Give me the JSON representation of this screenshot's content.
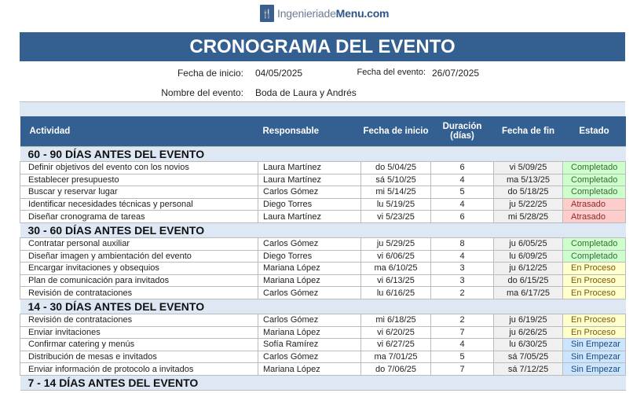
{
  "logo": {
    "text_light": "Ingenieriade",
    "text_bold": "Menu.com"
  },
  "title": "CRONOGRAMA DEL EVENTO",
  "meta": {
    "start_label": "Fecha de inicio:",
    "start_value": "04/05/2025",
    "event_date_label": "Fecha del evento:",
    "event_date_value": "26/07/2025",
    "name_label": "Nombre del evento:",
    "name_value": "Boda de Laura y Andrés"
  },
  "columns": [
    "Actividad",
    "Responsable",
    "Fecha de inicio",
    "Duración (días)",
    "Fecha de fin",
    "Estado"
  ],
  "status_colors": {
    "Completado": {
      "bg": "#ccffcc",
      "fg": "#3a6b3a"
    },
    "Atrasado": {
      "bg": "#ffcccc",
      "fg": "#8a2b2b"
    },
    "En Proceso": {
      "bg": "#ffffcc",
      "fg": "#7a5c10"
    },
    "Sin Empezar": {
      "bg": "#cce5ff",
      "fg": "#1f4a78"
    }
  },
  "sections": [
    {
      "title": "60 - 90 DÍAS ANTES DEL EVENTO",
      "rows": [
        [
          "Definir objetivos del evento con los novios",
          "Laura Martínez",
          "do 5/04/25",
          "6",
          "vi 5/09/25",
          "Completado"
        ],
        [
          "Establecer presupuesto",
          "Laura Martínez",
          "sá 5/10/25",
          "4",
          "ma 5/13/25",
          "Completado"
        ],
        [
          "Buscar y reservar lugar",
          "Carlos Gómez",
          "mi 5/14/25",
          "5",
          "do 5/18/25",
          "Completado"
        ],
        [
          "Identificar necesidades técnicas y personal",
          "Diego Torres",
          "lu 5/19/25",
          "4",
          "ju 5/22/25",
          "Atrasado"
        ],
        [
          "Diseñar cronograma de tareas",
          "Laura Martínez",
          "vi 5/23/25",
          "6",
          "mi 5/28/25",
          "Atrasado"
        ]
      ]
    },
    {
      "title": "30 - 60 DÍAS ANTES DEL EVENTO",
      "rows": [
        [
          "Contratar personal auxiliar",
          "Carlos Gómez",
          "ju 5/29/25",
          "8",
          "ju 6/05/25",
          "Completado"
        ],
        [
          "Diseñar imagen y ambientación del evento",
          "Diego Torres",
          "vi 6/06/25",
          "4",
          "lu 6/09/25",
          "Completado"
        ],
        [
          "Encargar invitaciones y obsequios",
          "Mariana López",
          "ma 6/10/25",
          "3",
          "ju 6/12/25",
          "En Proceso"
        ],
        [
          "Plan de comunicación para invitados",
          "Mariana López",
          "vi 6/13/25",
          "3",
          "do 6/15/25",
          "En Proceso"
        ],
        [
          "Revisión de contrataciones",
          "Carlos Gómez",
          "lu 6/16/25",
          "2",
          "ma 6/17/25",
          "En Proceso"
        ]
      ]
    },
    {
      "title": "14 - 30 DÍAS ANTES DEL EVENTO",
      "rows": [
        [
          "Revisión de contrataciones",
          "Carlos Gómez",
          "mi 6/18/25",
          "2",
          "ju 6/19/25",
          "En Proceso"
        ],
        [
          "Enviar invitaciones",
          "Mariana López",
          "vi 6/20/25",
          "7",
          "ju 6/26/25",
          "En Proceso"
        ],
        [
          "Confirmar catering y menús",
          "Sofía Ramírez",
          "vi 6/27/25",
          "4",
          "lu 6/30/25",
          "Sin Empezar"
        ],
        [
          "Distribución de mesas e invitados",
          "Carlos Gómez",
          "ma 7/01/25",
          "5",
          "sá 7/05/25",
          "Sin Empezar"
        ],
        [
          "Enviar información de protocolo a invitados",
          "Mariana López",
          "do 7/06/25",
          "7",
          "sá 7/12/25",
          "Sin Empezar"
        ]
      ]
    },
    {
      "title": "7 - 14 DÍAS ANTES DEL EVENTO",
      "rows": []
    }
  ]
}
